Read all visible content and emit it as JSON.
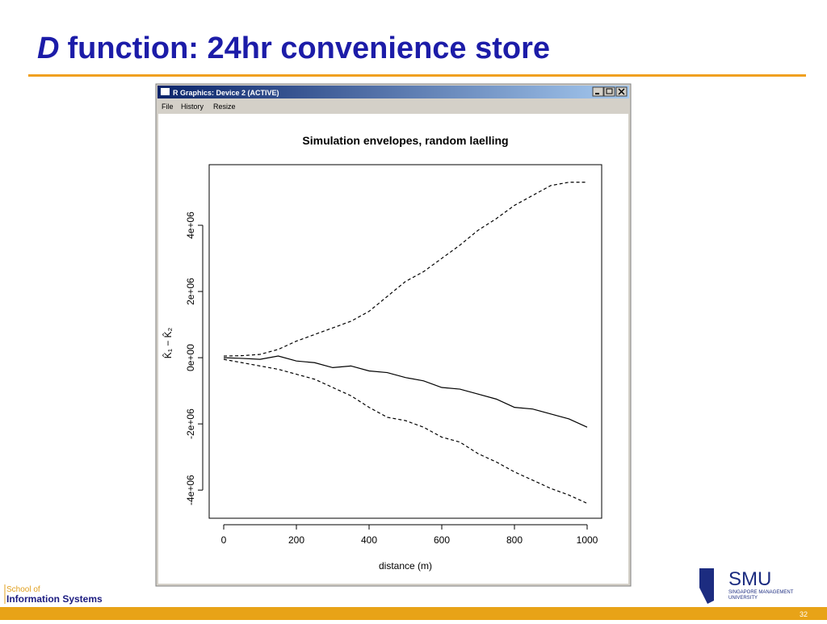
{
  "slide": {
    "title_italic": "D",
    "title": "function: 24hr convenience store",
    "window_title": "R Graphics: Device 2 (ACTIVE)",
    "menu": [
      "File",
      "History",
      "Resize"
    ],
    "footer": {
      "school_line1": "School of",
      "school_line2": "Information Systems",
      "logo": "SMU",
      "logo_sub1": "SINGAPORE MANAGEMENT",
      "logo_sub2": "UNIVERSITY",
      "page_number": "32"
    }
  },
  "chart_data": {
    "type": "line",
    "title": "Simulation envelopes, random laelling",
    "xlabel": "distance (m)",
    "ylabel": "K̂₁ − K̂₂",
    "x": [
      0,
      50,
      100,
      150,
      200,
      250,
      300,
      350,
      400,
      450,
      500,
      550,
      600,
      650,
      700,
      750,
      800,
      850,
      900,
      950,
      1000
    ],
    "series": [
      {
        "color": "#000000",
        "dash": false,
        "values": [
          0,
          -20000,
          -50000,
          50000,
          -100000,
          -150000,
          -300000,
          -250000,
          -400000,
          -450000,
          -600000,
          -700000,
          -900000,
          -950000,
          -1100000,
          -1250000,
          -1500000,
          -1550000,
          -1700000,
          -1850000,
          -2100000
        ]
      },
      {
        "color": "#000000",
        "dash": true,
        "values": [
          50000,
          60000,
          100000,
          250000,
          500000,
          700000,
          900000,
          1100000,
          1400000,
          1850000,
          2300000,
          2600000,
          3000000,
          3400000,
          3850000,
          4200000,
          4600000,
          4900000,
          5200000,
          5300000,
          5300000
        ]
      },
      {
        "color": "#000000",
        "dash": true,
        "values": [
          -50000,
          -150000,
          -250000,
          -350000,
          -500000,
          -650000,
          -900000,
          -1150000,
          -1500000,
          -1800000,
          -1900000,
          -2100000,
          -2400000,
          -2550000,
          -2900000,
          -3150000,
          -3450000,
          -3700000,
          -3950000,
          -4150000,
          -4400000
        ]
      }
    ],
    "xlim": [
      -40,
      1040
    ],
    "xticks": [
      0,
      200,
      400,
      600,
      800,
      1000
    ],
    "ylim": [
      -4850000,
      5830000
    ],
    "yticks": [
      {
        "value": -4000000,
        "label": "-4e+06"
      },
      {
        "value": -2000000,
        "label": "-2e+06"
      },
      {
        "value": 0,
        "label": "0e+00"
      },
      {
        "value": 2000000,
        "label": "2e+06"
      },
      {
        "value": 4000000,
        "label": "4e+06"
      }
    ],
    "grid": false
  }
}
